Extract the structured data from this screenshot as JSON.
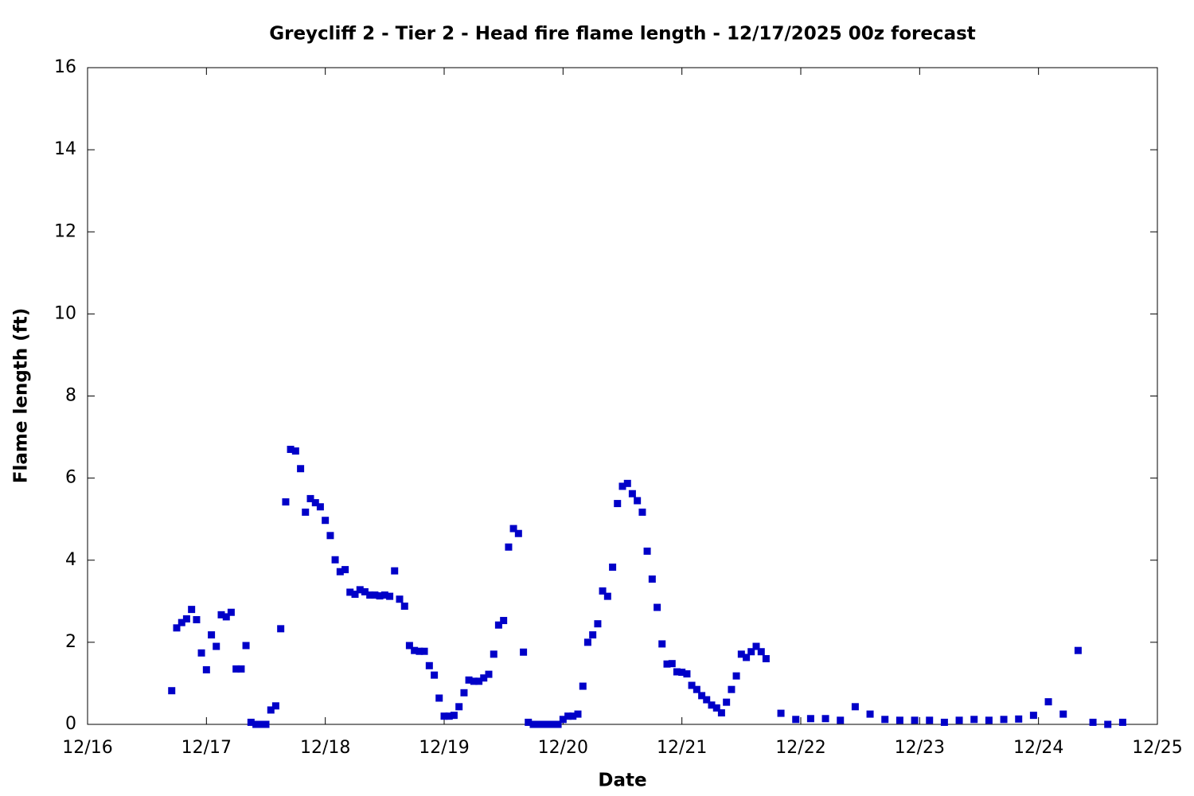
{
  "chart_data": {
    "type": "scatter",
    "title": "Greycliff 2 - Tier 2 - Head fire flame length - 12/17/2025 00z forecast",
    "x_label": "Date",
    "y_label": "Flame length (ft)",
    "xlim": [
      0,
      9
    ],
    "xticks": [
      {
        "value": 0,
        "label": "12/16"
      },
      {
        "value": 1,
        "label": "12/17"
      },
      {
        "value": 2,
        "label": "12/18"
      },
      {
        "value": 3,
        "label": "12/19"
      },
      {
        "value": 4,
        "label": "12/20"
      },
      {
        "value": 5,
        "label": "12/21"
      },
      {
        "value": 6,
        "label": "12/22"
      },
      {
        "value": 7,
        "label": "12/23"
      },
      {
        "value": 8,
        "label": "12/24"
      },
      {
        "value": 9,
        "label": "12/25"
      }
    ],
    "ylim": [
      0,
      16
    ],
    "yticks": [
      0,
      2,
      4,
      6,
      8,
      10,
      12,
      14,
      16
    ],
    "color": "#0000c8",
    "x": [
      0.708,
      0.75,
      0.792,
      0.833,
      0.875,
      0.917,
      0.958,
      1,
      1.042,
      1.083,
      1.125,
      1.167,
      1.208,
      1.25,
      1.292,
      1.333,
      1.375,
      1.417,
      1.458,
      1.5,
      1.542,
      1.583,
      1.625,
      1.667,
      1.708,
      1.75,
      1.792,
      1.833,
      1.875,
      1.917,
      1.958,
      2,
      2.042,
      2.083,
      2.125,
      2.167,
      2.208,
      2.25,
      2.292,
      2.333,
      2.375,
      2.417,
      2.458,
      2.5,
      2.542,
      2.583,
      2.625,
      2.667,
      2.708,
      2.75,
      2.792,
      2.833,
      2.875,
      2.917,
      2.958,
      3,
      3.042,
      3.083,
      3.125,
      3.167,
      3.208,
      3.25,
      3.292,
      3.333,
      3.375,
      3.417,
      3.458,
      3.5,
      3.542,
      3.583,
      3.625,
      3.667,
      3.708,
      3.75,
      3.792,
      3.833,
      3.875,
      3.917,
      3.958,
      4,
      4.042,
      4.083,
      4.125,
      4.167,
      4.208,
      4.25,
      4.292,
      4.333,
      4.375,
      4.417,
      4.458,
      4.5,
      4.542,
      4.583,
      4.625,
      4.667,
      4.708,
      4.75,
      4.792,
      4.833,
      4.875,
      4.917,
      4.958,
      5,
      5.042,
      5.083,
      5.125,
      5.167,
      5.208,
      5.25,
      5.292,
      5.333,
      5.375,
      5.417,
      5.458,
      5.5,
      5.542,
      5.583,
      5.625,
      5.667,
      5.708,
      5.833,
      5.958,
      6.083,
      6.208,
      6.333,
      6.458,
      6.583,
      6.708,
      6.833,
      6.958,
      7.083,
      7.208,
      7.333,
      7.458,
      7.583,
      7.708,
      7.833,
      7.958,
      8.083,
      8.208,
      8.333,
      8.458,
      8.583,
      8.708
    ],
    "values": [
      0.82,
      2.35,
      2.48,
      2.57,
      2.8,
      2.55,
      1.74,
      1.33,
      2.18,
      1.9,
      2.67,
      2.62,
      2.73,
      1.35,
      1.35,
      1.92,
      0.05,
      0,
      0,
      0,
      0.35,
      0.45,
      2.33,
      5.42,
      6.7,
      6.66,
      6.23,
      5.17,
      5.5,
      5.4,
      5.3,
      4.97,
      4.6,
      4.01,
      3.72,
      3.77,
      3.22,
      3.17,
      3.28,
      3.23,
      3.15,
      3.15,
      3.13,
      3.15,
      3.12,
      3.74,
      3.05,
      2.88,
      1.92,
      1.8,
      1.78,
      1.78,
      1.43,
      1.2,
      0.64,
      0.2,
      0.2,
      0.22,
      0.43,
      0.77,
      1.08,
      1.05,
      1.05,
      1.13,
      1.22,
      1.71,
      2.42,
      2.53,
      4.32,
      4.77,
      4.65,
      1.76,
      0.05,
      0,
      0,
      0,
      0,
      0,
      0,
      0.12,
      0.2,
      0.2,
      0.25,
      0.93,
      2,
      2.18,
      2.45,
      3.25,
      3.12,
      3.83,
      5.38,
      5.8,
      5.87,
      5.62,
      5.45,
      5.17,
      4.22,
      3.54,
      2.85,
      1.96,
      1.47,
      1.48,
      1.28,
      1.27,
      1.23,
      0.95,
      0.85,
      0.7,
      0.6,
      0.47,
      0.4,
      0.28,
      0.54,
      0.85,
      1.18,
      1.71,
      1.63,
      1.77,
      1.9,
      1.77,
      1.6,
      0.27,
      0.12,
      0.14,
      0.14,
      0.1,
      0.43,
      0.25,
      0.12,
      0.1,
      0.1,
      0.1,
      0.05,
      0.1,
      0.12,
      0.1,
      0.12,
      0.13,
      0.22,
      0.55,
      0.25,
      1.8,
      0.05,
      0,
      0.05
    ]
  }
}
